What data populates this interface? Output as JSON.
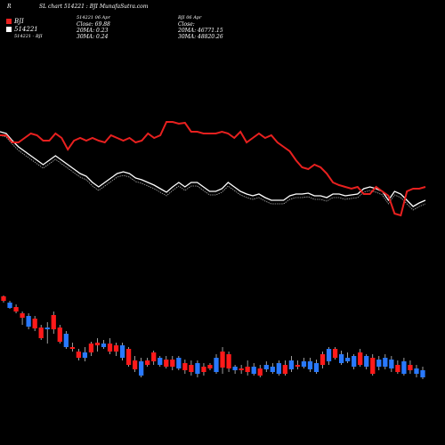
{
  "header": {
    "corner_letter": "R",
    "title": "SL chart 514221 : BJI MunafaSutra.com"
  },
  "legend": {
    "items": [
      {
        "label": "BJI",
        "color": "#e8201f"
      },
      {
        "label": "514221",
        "color": "#ffffff"
      }
    ],
    "pair_label": "514221 - BJI"
  },
  "stats_left": {
    "line1": "514221 06 Apr",
    "line2": "Close: 69.88",
    "line3": "20MA: 0.23",
    "line4": "30MA: 0.24"
  },
  "stats_right": {
    "line1": "BJI 06 Apr",
    "line2": "Close:",
    "line3": "20MA: 46771.15",
    "line4": "30MA: 48820.26"
  },
  "colors": {
    "background": "#000000",
    "ratio_line": "#e8201f",
    "price_line": "#ffffff",
    "up_candle": "#2979ff",
    "down_candle": "#ff1a1a"
  },
  "chart_data": [
    {
      "type": "line",
      "title": "",
      "x": [
        1,
        2,
        3,
        4,
        5,
        6,
        7,
        8,
        9,
        10,
        11,
        12,
        13,
        14,
        15,
        16,
        17,
        18,
        19,
        20,
        21,
        22,
        23,
        24,
        25,
        26,
        27,
        28,
        29,
        30,
        31,
        32,
        33,
        34,
        35,
        36,
        37,
        38,
        39,
        40,
        41,
        42,
        43,
        44,
        45,
        46,
        47,
        48,
        49,
        50,
        51,
        52,
        53,
        54,
        55,
        56,
        57,
        58,
        59,
        60,
        61,
        62,
        63,
        64,
        65,
        66,
        67,
        68,
        69,
        70
      ],
      "series": [
        {
          "name": "BJI",
          "values": [
            152,
            152,
            160,
            160,
            155,
            150,
            152,
            158,
            158,
            150,
            155,
            168,
            158,
            155,
            158,
            155,
            158,
            160,
            152,
            155,
            158,
            155,
            160,
            158,
            150,
            155,
            152,
            137,
            137,
            139,
            138,
            148,
            148,
            150,
            150,
            150,
            148,
            150,
            155,
            148,
            160,
            155,
            150,
            155,
            152,
            160,
            165,
            170,
            180,
            188,
            190,
            185,
            188,
            195,
            205,
            208,
            210,
            212,
            210,
            218,
            218,
            210,
            215,
            220,
            240,
            242,
            215,
            212,
            212,
            210
          ]
        },
        {
          "name": "514221",
          "values": [
            148,
            150,
            158,
            165,
            170,
            175,
            180,
            185,
            180,
            175,
            180,
            185,
            190,
            195,
            198,
            205,
            210,
            205,
            200,
            195,
            193,
            195,
            200,
            202,
            205,
            208,
            212,
            216,
            210,
            205,
            210,
            205,
            205,
            210,
            215,
            215,
            212,
            205,
            210,
            215,
            218,
            220,
            218,
            222,
            225,
            225,
            225,
            220,
            218,
            218,
            217,
            220,
            220,
            222,
            218,
            218,
            220,
            219,
            218,
            212,
            210,
            212,
            215,
            225,
            215,
            218,
            225,
            232,
            228,
            225
          ]
        }
      ]
    },
    {
      "type": "bar",
      "title": "",
      "categories": [
        1,
        2,
        3,
        4,
        5,
        6,
        7,
        8,
        9,
        10,
        11,
        12,
        13,
        14,
        15,
        16,
        17,
        18,
        19,
        20,
        21,
        22,
        23,
        24,
        25,
        26,
        27,
        28,
        29,
        30,
        31,
        32,
        33,
        34,
        35,
        36,
        37,
        38,
        39,
        40,
        41,
        42,
        43,
        44,
        45,
        46,
        47,
        48,
        49,
        50,
        51,
        52,
        53,
        54,
        55,
        56,
        57,
        58,
        59,
        60,
        61,
        62,
        63,
        64,
        65,
        66,
        67,
        68
      ],
      "series": [
        {
          "name": "",
          "values": [
            {
              "o": 333,
              "c": 338,
              "h": 332,
              "l": 340
            },
            {
              "o": 340,
              "c": 346,
              "h": 338,
              "l": 347
            },
            {
              "o": 345,
              "c": 350,
              "h": 342,
              "l": 352
            },
            {
              "o": 352,
              "c": 357,
              "h": 350,
              "l": 365
            },
            {
              "o": 355,
              "c": 367,
              "h": 352,
              "l": 370
            },
            {
              "o": 358,
              "c": 369,
              "h": 355,
              "l": 372
            },
            {
              "o": 368,
              "c": 380,
              "h": 365,
              "l": 382
            },
            {
              "o": 370,
              "c": 368,
              "h": 362,
              "l": 386
            },
            {
              "o": 354,
              "c": 370,
              "h": 350,
              "l": 375
            },
            {
              "o": 368,
              "c": 384,
              "h": 365,
              "l": 386
            },
            {
              "o": 375,
              "c": 390,
              "h": 372,
              "l": 392
            },
            {
              "o": 390,
              "c": 392,
              "h": 385,
              "l": 395
            },
            {
              "o": 395,
              "c": 402,
              "h": 392,
              "l": 405
            },
            {
              "o": 396,
              "c": 402,
              "h": 390,
              "l": 406
            },
            {
              "o": 386,
              "c": 396,
              "h": 384,
              "l": 400
            },
            {
              "o": 385,
              "c": 388,
              "h": 380,
              "l": 395
            },
            {
              "o": 386,
              "c": 390,
              "h": 382,
              "l": 392
            },
            {
              "o": 386,
              "c": 395,
              "h": 380,
              "l": 398
            },
            {
              "o": 388,
              "c": 395,
              "h": 385,
              "l": 400
            },
            {
              "o": 388,
              "c": 402,
              "h": 385,
              "l": 405
            },
            {
              "o": 392,
              "c": 410,
              "h": 390,
              "l": 412
            },
            {
              "o": 405,
              "c": 415,
              "h": 400,
              "l": 418
            },
            {
              "o": 406,
              "c": 422,
              "h": 402,
              "l": 424
            },
            {
              "o": 405,
              "c": 410,
              "h": 402,
              "l": 412
            },
            {
              "o": 396,
              "c": 406,
              "h": 394,
              "l": 410
            },
            {
              "o": 402,
              "c": 410,
              "h": 400,
              "l": 412
            },
            {
              "o": 404,
              "c": 412,
              "h": 400,
              "l": 414
            },
            {
              "o": 404,
              "c": 412,
              "h": 400,
              "l": 416
            },
            {
              "o": 402,
              "c": 414,
              "h": 400,
              "l": 416
            },
            {
              "o": 408,
              "c": 416,
              "h": 404,
              "l": 420
            },
            {
              "o": 410,
              "c": 418,
              "h": 405,
              "l": 422
            },
            {
              "o": 408,
              "c": 420,
              "h": 405,
              "l": 424
            },
            {
              "o": 412,
              "c": 418,
              "h": 408,
              "l": 422
            },
            {
              "o": 410,
              "c": 414,
              "h": 408,
              "l": 416
            },
            {
              "o": 402,
              "c": 418,
              "h": 398,
              "l": 420
            },
            {
              "o": 395,
              "c": 413,
              "h": 390,
              "l": 420
            },
            {
              "o": 398,
              "c": 414,
              "h": 395,
              "l": 418
            },
            {
              "o": 412,
              "c": 416,
              "h": 410,
              "l": 420
            },
            {
              "o": 414,
              "c": 416,
              "h": 410,
              "l": 420
            },
            {
              "o": 412,
              "c": 418,
              "h": 405,
              "l": 422
            },
            {
              "o": 412,
              "c": 420,
              "h": 408,
              "l": 422
            },
            {
              "o": 414,
              "c": 422,
              "h": 410,
              "l": 424
            },
            {
              "o": 410,
              "c": 415,
              "h": 406,
              "l": 418
            },
            {
              "o": 412,
              "c": 418,
              "h": 408,
              "l": 420
            },
            {
              "o": 408,
              "c": 420,
              "h": 405,
              "l": 422
            },
            {
              "o": 410,
              "c": 420,
              "h": 405,
              "l": 422
            },
            {
              "o": 405,
              "c": 415,
              "h": 400,
              "l": 418
            },
            {
              "o": 410,
              "c": 412,
              "h": 405,
              "l": 415
            },
            {
              "o": 406,
              "c": 412,
              "h": 402,
              "l": 414
            },
            {
              "o": 406,
              "c": 415,
              "h": 402,
              "l": 418
            },
            {
              "o": 408,
              "c": 418,
              "h": 404,
              "l": 420
            },
            {
              "o": 398,
              "c": 410,
              "h": 395,
              "l": 414
            },
            {
              "o": 392,
              "c": 406,
              "h": 390,
              "l": 410
            },
            {
              "o": 392,
              "c": 402,
              "h": 390,
              "l": 404
            },
            {
              "o": 398,
              "c": 408,
              "h": 394,
              "l": 410
            },
            {
              "o": 402,
              "c": 406,
              "h": 396,
              "l": 408
            },
            {
              "o": 400,
              "c": 412,
              "h": 398,
              "l": 415
            },
            {
              "o": 396,
              "c": 410,
              "h": 392,
              "l": 412
            },
            {
              "o": 400,
              "c": 412,
              "h": 398,
              "l": 415
            },
            {
              "o": 402,
              "c": 420,
              "h": 398,
              "l": 422
            },
            {
              "o": 404,
              "c": 412,
              "h": 400,
              "l": 416
            },
            {
              "o": 402,
              "c": 412,
              "h": 398,
              "l": 415
            },
            {
              "o": 404,
              "c": 414,
              "h": 400,
              "l": 418
            },
            {
              "o": 410,
              "c": 418,
              "h": 405,
              "l": 420
            },
            {
              "o": 406,
              "c": 420,
              "h": 402,
              "l": 422
            },
            {
              "o": 410,
              "c": 416,
              "h": 405,
              "l": 420
            },
            {
              "o": 414,
              "c": 420,
              "h": 410,
              "l": 424
            },
            {
              "o": 416,
              "c": 424,
              "h": 412,
              "l": 426
            }
          ]
        }
      ]
    }
  ]
}
